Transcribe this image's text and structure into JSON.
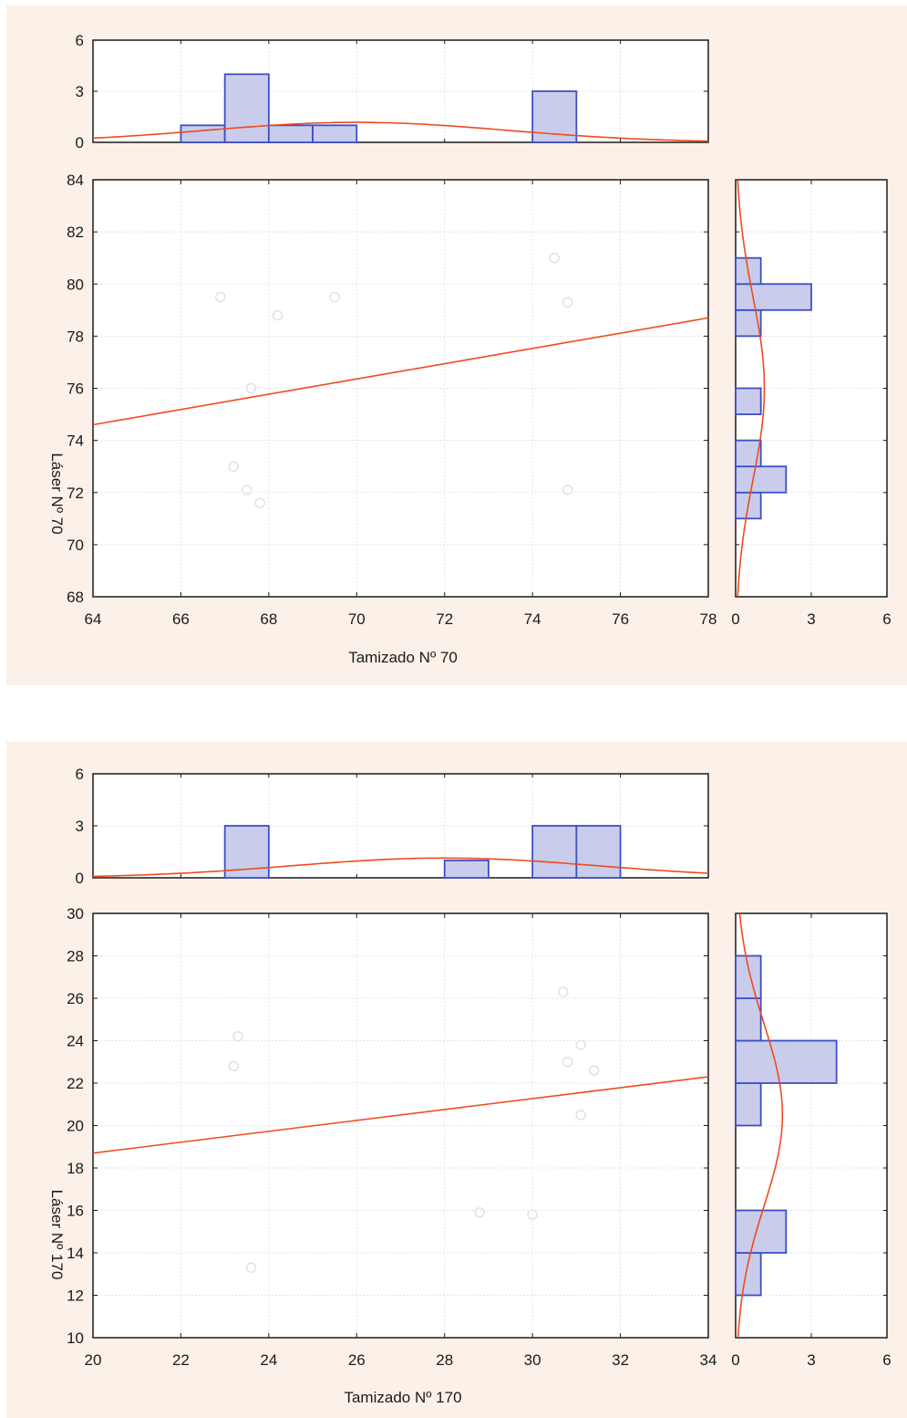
{
  "colors": {
    "panel_bg": "#fbf1e8",
    "bar_fill": "#c9cdeb",
    "bar_stroke": "#3d4fc4",
    "fit_line": "#f04a1e",
    "points": "#e0e0e0"
  },
  "chart_data": [
    {
      "type": "scatter",
      "xlabel": "Tamizado Nº 70",
      "ylabel": "Láser Nº 70",
      "xlim": [
        64,
        78
      ],
      "ylim": [
        68,
        84
      ],
      "xticks": [
        "64",
        "66",
        "68",
        "70",
        "72",
        "74",
        "76",
        "78"
      ],
      "yticks": [
        "68",
        "70",
        "72",
        "74",
        "76",
        "78",
        "80",
        "82",
        "84"
      ],
      "grid": true,
      "points": [
        {
          "x": 66.9,
          "y": 79.5
        },
        {
          "x": 67.2,
          "y": 73.0
        },
        {
          "x": 67.5,
          "y": 72.1
        },
        {
          "x": 67.6,
          "y": 76.0
        },
        {
          "x": 67.8,
          "y": 71.6
        },
        {
          "x": 68.2,
          "y": 78.8
        },
        {
          "x": 69.5,
          "y": 79.5
        },
        {
          "x": 74.5,
          "y": 81.0
        },
        {
          "x": 74.8,
          "y": 79.3
        },
        {
          "x": 74.8,
          "y": 72.1
        }
      ],
      "fit_line": {
        "x": [
          64,
          78
        ],
        "y": [
          74.6,
          78.7
        ]
      },
      "top_histogram": {
        "ylim": [
          0,
          6
        ],
        "yticks": [
          "0",
          "3",
          "6"
        ],
        "bins": [
          {
            "from": 66,
            "to": 67,
            "count": 1
          },
          {
            "from": 67,
            "to": 68,
            "count": 4
          },
          {
            "from": 68,
            "to": 69,
            "count": 1
          },
          {
            "from": 69,
            "to": 70,
            "count": 1
          },
          {
            "from": 74,
            "to": 75,
            "count": 3
          }
        ],
        "normal_curve": {
          "mean": 70.0,
          "sd": 3.4
        }
      },
      "right_histogram": {
        "xlim": [
          0,
          6
        ],
        "xticks": [
          "0",
          "3",
          "6"
        ],
        "bins": [
          {
            "from": 71,
            "to": 72,
            "count": 1
          },
          {
            "from": 72,
            "to": 73,
            "count": 2
          },
          {
            "from": 73,
            "to": 74,
            "count": 1
          },
          {
            "from": 75,
            "to": 76,
            "count": 1
          },
          {
            "from": 78,
            "to": 79,
            "count": 1
          },
          {
            "from": 79,
            "to": 80,
            "count": 3
          },
          {
            "from": 80,
            "to": 81,
            "count": 1
          }
        ],
        "normal_curve": {
          "mean": 76.0,
          "sd": 3.5
        }
      }
    },
    {
      "type": "scatter",
      "xlabel": "Tamizado Nº 170",
      "ylabel": "Láser Nº 170",
      "xlim": [
        20,
        34
      ],
      "ylim": [
        10,
        30
      ],
      "xticks": [
        "20",
        "22",
        "24",
        "26",
        "28",
        "30",
        "32",
        "34"
      ],
      "yticks": [
        "10",
        "12",
        "14",
        "16",
        "18",
        "20",
        "22",
        "24",
        "26",
        "28",
        "30"
      ],
      "grid": true,
      "points": [
        {
          "x": 23.2,
          "y": 22.8
        },
        {
          "x": 23.3,
          "y": 24.2
        },
        {
          "x": 23.6,
          "y": 13.3
        },
        {
          "x": 28.8,
          "y": 15.9
        },
        {
          "x": 30.0,
          "y": 15.8
        },
        {
          "x": 30.7,
          "y": 26.3
        },
        {
          "x": 30.8,
          "y": 23.0
        },
        {
          "x": 31.1,
          "y": 23.8
        },
        {
          "x": 31.1,
          "y": 20.5
        },
        {
          "x": 31.4,
          "y": 22.6
        }
      ],
      "fit_line": {
        "x": [
          20,
          34
        ],
        "y": [
          18.7,
          22.3
        ]
      },
      "top_histogram": {
        "ylim": [
          0,
          6
        ],
        "yticks": [
          "0",
          "3",
          "6"
        ],
        "bins": [
          {
            "from": 23,
            "to": 24,
            "count": 3
          },
          {
            "from": 28,
            "to": 29,
            "count": 1
          },
          {
            "from": 30,
            "to": 31,
            "count": 3
          },
          {
            "from": 31,
            "to": 32,
            "count": 3
          }
        ],
        "normal_curve": {
          "mean": 28.0,
          "sd": 3.5
        }
      },
      "right_histogram": {
        "xlim": [
          0,
          6
        ],
        "xticks": [
          "0",
          "3",
          "6"
        ],
        "bins": [
          {
            "from": 12,
            "to": 14,
            "count": 1
          },
          {
            "from": 14,
            "to": 16,
            "count": 2
          },
          {
            "from": 20,
            "to": 22,
            "count": 1
          },
          {
            "from": 22,
            "to": 24,
            "count": 4
          },
          {
            "from": 24,
            "to": 26,
            "count": 1
          },
          {
            "from": 26,
            "to": 28,
            "count": 1
          }
        ],
        "normal_curve": {
          "mean": 20.5,
          "sd": 4.3
        }
      }
    }
  ]
}
